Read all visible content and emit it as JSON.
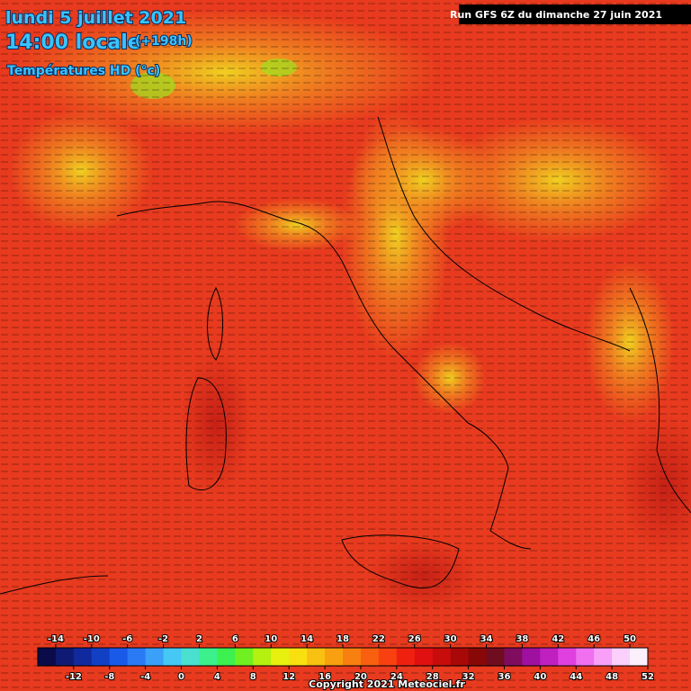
{
  "header": {
    "date": "lundi 5 juillet 2021",
    "time": "14:00 locale",
    "lead": "(+198h)",
    "field": "Températures HD (°c)",
    "run": "Run GFS 6Z du dimanche 27 juin 2021"
  },
  "legend": {
    "range": [
      -16,
      52
    ],
    "top_labels": [
      -14,
      -10,
      -6,
      -2,
      2,
      6,
      10,
      14,
      18,
      22,
      26,
      30,
      34,
      38,
      42,
      46,
      50
    ],
    "bottom_labels": [
      -12,
      -8,
      -4,
      0,
      4,
      8,
      12,
      16,
      20,
      24,
      28,
      32,
      36,
      40,
      44,
      48,
      52
    ],
    "colors": [
      "#0b0b4a",
      "#0e1a73",
      "#102a9e",
      "#1240c4",
      "#1a5ae8",
      "#2a7af5",
      "#3aa0f8",
      "#46c8f5",
      "#4ae0d0",
      "#3cf08c",
      "#3cf050",
      "#70f020",
      "#b4f010",
      "#e8f010",
      "#f8e010",
      "#f8c010",
      "#f8a010",
      "#f88010",
      "#f86010",
      "#f84010",
      "#f02010",
      "#e01010",
      "#c80c0c",
      "#a80808",
      "#880808",
      "#700c20",
      "#800c60",
      "#a010a0",
      "#c020c0",
      "#e040e0",
      "#f070f0",
      "#f8a0f8",
      "#fad0fa",
      "#fdf0fd"
    ]
  },
  "footer": {
    "copyright": "Copyright 2021 Meteociel.fr"
  }
}
